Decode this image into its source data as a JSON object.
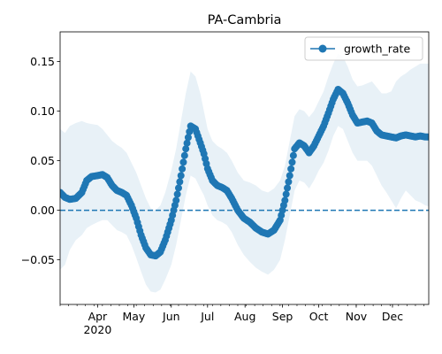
{
  "chart_data": {
    "type": "line",
    "title": "PA-Cambria",
    "xlabel": "",
    "ylabel": "",
    "x_axis": {
      "type": "date",
      "range": [
        "2020-03-01",
        "2020-12-31"
      ],
      "major_ticks": [
        {
          "date": "2020-04-01",
          "label": "Apr",
          "sublabel": "2020"
        },
        {
          "date": "2020-05-01",
          "label": "May",
          "sublabel": ""
        },
        {
          "date": "2020-06-01",
          "label": "Jun",
          "sublabel": ""
        },
        {
          "date": "2020-07-01",
          "label": "Jul",
          "sublabel": ""
        },
        {
          "date": "2020-08-01",
          "label": "Aug",
          "sublabel": ""
        },
        {
          "date": "2020-09-01",
          "label": "Sep",
          "sublabel": ""
        },
        {
          "date": "2020-10-01",
          "label": "Oct",
          "sublabel": ""
        },
        {
          "date": "2020-11-01",
          "label": "Nov",
          "sublabel": ""
        },
        {
          "date": "2020-12-01",
          "label": "Dec",
          "sublabel": ""
        }
      ],
      "minor_ticks": "weekly"
    },
    "y_axis": {
      "range": [
        -0.095,
        0.18
      ],
      "ticks": [
        -0.05,
        0.0,
        0.05,
        0.1,
        0.15
      ],
      "tick_labels": [
        "−0.05",
        "0.00",
        "0.05",
        "0.10",
        "0.15"
      ]
    },
    "grid": false,
    "legend": {
      "position": "top-right",
      "entries": [
        "growth_rate"
      ]
    },
    "reference_line": {
      "y": 0.0,
      "style": "dashed"
    },
    "series": [
      {
        "name": "growth_rate",
        "color": "#1f77b4",
        "marker": "circle",
        "x": [
          "2020-03-01",
          "2020-03-05",
          "2020-03-09",
          "2020-03-14",
          "2020-03-19",
          "2020-03-23",
          "2020-03-27",
          "2020-04-01",
          "2020-04-05",
          "2020-04-09",
          "2020-04-13",
          "2020-04-17",
          "2020-04-21",
          "2020-04-25",
          "2020-04-29",
          "2020-05-03",
          "2020-05-07",
          "2020-05-11",
          "2020-05-15",
          "2020-05-19",
          "2020-05-23",
          "2020-05-27",
          "2020-06-01",
          "2020-06-05",
          "2020-06-09",
          "2020-06-13",
          "2020-06-17",
          "2020-06-21",
          "2020-06-25",
          "2020-06-28",
          "2020-07-01",
          "2020-07-05",
          "2020-07-09",
          "2020-07-13",
          "2020-07-17",
          "2020-07-21",
          "2020-07-26",
          "2020-07-31",
          "2020-08-05",
          "2020-08-10",
          "2020-08-15",
          "2020-08-20",
          "2020-08-25",
          "2020-08-30",
          "2020-09-03",
          "2020-09-07",
          "2020-09-11",
          "2020-09-15",
          "2020-09-19",
          "2020-09-23",
          "2020-09-27",
          "2020-10-01",
          "2020-10-05",
          "2020-10-09",
          "2020-10-13",
          "2020-10-17",
          "2020-10-21",
          "2020-10-25",
          "2020-10-29",
          "2020-11-02",
          "2020-11-06",
          "2020-11-10",
          "2020-11-14",
          "2020-11-18",
          "2020-11-22",
          "2020-11-26",
          "2020-11-30",
          "2020-12-04",
          "2020-12-08",
          "2020-12-12",
          "2020-12-16",
          "2020-12-20",
          "2020-12-24",
          "2020-12-28",
          "2020-12-31"
        ],
        "values": [
          0.018,
          0.013,
          0.011,
          0.012,
          0.018,
          0.03,
          0.034,
          0.035,
          0.036,
          0.033,
          0.025,
          0.02,
          0.018,
          0.015,
          0.005,
          -0.008,
          -0.025,
          -0.038,
          -0.045,
          -0.046,
          -0.042,
          -0.03,
          -0.01,
          0.01,
          0.035,
          0.062,
          0.085,
          0.082,
          0.068,
          0.057,
          0.042,
          0.03,
          0.025,
          0.023,
          0.02,
          0.012,
          0.0,
          -0.008,
          -0.012,
          -0.018,
          -0.022,
          -0.024,
          -0.02,
          -0.01,
          0.01,
          0.035,
          0.062,
          0.068,
          0.065,
          0.058,
          0.065,
          0.075,
          0.085,
          0.098,
          0.112,
          0.122,
          0.118,
          0.108,
          0.096,
          0.088,
          0.089,
          0.09,
          0.088,
          0.08,
          0.076,
          0.075,
          0.074,
          0.073,
          0.075,
          0.076,
          0.075,
          0.074,
          0.075,
          0.074,
          0.074
        ],
        "band_upper": [
          0.082,
          0.078,
          0.085,
          0.088,
          0.09,
          0.088,
          0.087,
          0.086,
          0.082,
          0.076,
          0.07,
          0.066,
          0.063,
          0.058,
          0.048,
          0.038,
          0.025,
          0.012,
          0.002,
          0.0,
          0.005,
          0.018,
          0.04,
          0.062,
          0.09,
          0.118,
          0.14,
          0.135,
          0.118,
          0.1,
          0.082,
          0.07,
          0.065,
          0.062,
          0.058,
          0.05,
          0.038,
          0.03,
          0.028,
          0.025,
          0.02,
          0.018,
          0.022,
          0.03,
          0.045,
          0.07,
          0.095,
          0.102,
          0.1,
          0.094,
          0.1,
          0.11,
          0.12,
          0.135,
          0.148,
          0.158,
          0.155,
          0.145,
          0.132,
          0.125,
          0.126,
          0.128,
          0.13,
          0.124,
          0.118,
          0.118,
          0.12,
          0.13,
          0.135,
          0.138,
          0.142,
          0.145,
          0.148,
          0.148,
          0.148
        ],
        "band_lower": [
          -0.06,
          -0.055,
          -0.04,
          -0.03,
          -0.025,
          -0.018,
          -0.015,
          -0.012,
          -0.01,
          -0.01,
          -0.015,
          -0.02,
          -0.022,
          -0.025,
          -0.035,
          -0.048,
          -0.062,
          -0.075,
          -0.082,
          -0.083,
          -0.08,
          -0.07,
          -0.055,
          -0.035,
          -0.01,
          0.015,
          0.035,
          0.032,
          0.022,
          0.015,
          0.005,
          -0.005,
          -0.01,
          -0.012,
          -0.015,
          -0.022,
          -0.035,
          -0.045,
          -0.052,
          -0.058,
          -0.062,
          -0.065,
          -0.06,
          -0.05,
          -0.03,
          -0.005,
          0.02,
          0.03,
          0.028,
          0.022,
          0.03,
          0.04,
          0.048,
          0.06,
          0.075,
          0.085,
          0.082,
          0.07,
          0.058,
          0.05,
          0.05,
          0.05,
          0.045,
          0.035,
          0.025,
          0.018,
          0.01,
          0.002,
          0.012,
          0.02,
          0.015,
          0.01,
          0.008,
          0.005,
          0.004
        ]
      }
    ]
  }
}
